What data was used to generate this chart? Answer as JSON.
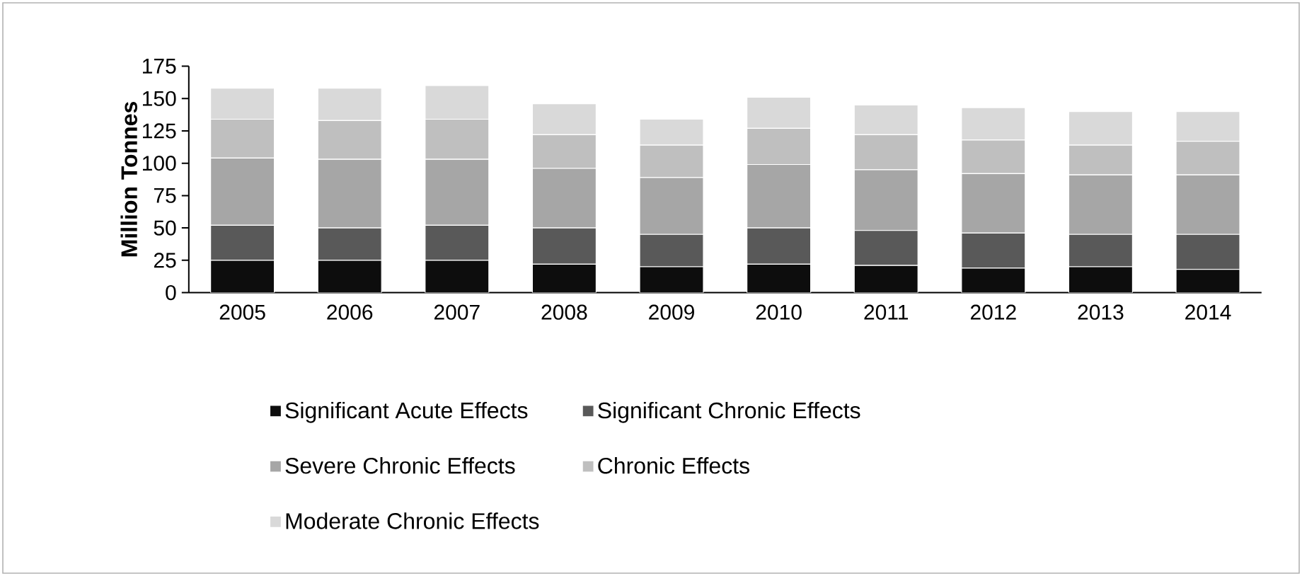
{
  "chart_data": {
    "type": "bar",
    "stacked": true,
    "ylabel": "Million Tonnes",
    "categories": [
      "2005",
      "2006",
      "2007",
      "2008",
      "2009",
      "2010",
      "2011",
      "2012",
      "2013",
      "2014"
    ],
    "series": [
      {
        "name": "Significant Acute Effects",
        "color": "#0d0d0d",
        "values": [
          25,
          25,
          25,
          22,
          20,
          22,
          21,
          19,
          20,
          18
        ]
      },
      {
        "name": "Significant Chronic Effects",
        "color": "#595959",
        "values": [
          27,
          25,
          27,
          28,
          25,
          28,
          27,
          27,
          25,
          27
        ]
      },
      {
        "name": "Severe Chronic Effects",
        "color": "#a6a6a6",
        "values": [
          52,
          53,
          51,
          46,
          44,
          49,
          47,
          46,
          46,
          46
        ]
      },
      {
        "name": "Chronic Effects",
        "color": "#bfbfbf",
        "values": [
          30,
          30,
          31,
          26,
          25,
          28,
          27,
          26,
          23,
          26
        ]
      },
      {
        "name": "Moderate Chronic Effects",
        "color": "#d9d9d9",
        "values": [
          24,
          25,
          26,
          24,
          20,
          24,
          23,
          25,
          26,
          23
        ]
      }
    ],
    "ylim": [
      0,
      175
    ],
    "yticks": [
      0,
      25,
      50,
      75,
      100,
      125,
      150,
      175
    ],
    "grid": false,
    "legend": "bottom"
  }
}
